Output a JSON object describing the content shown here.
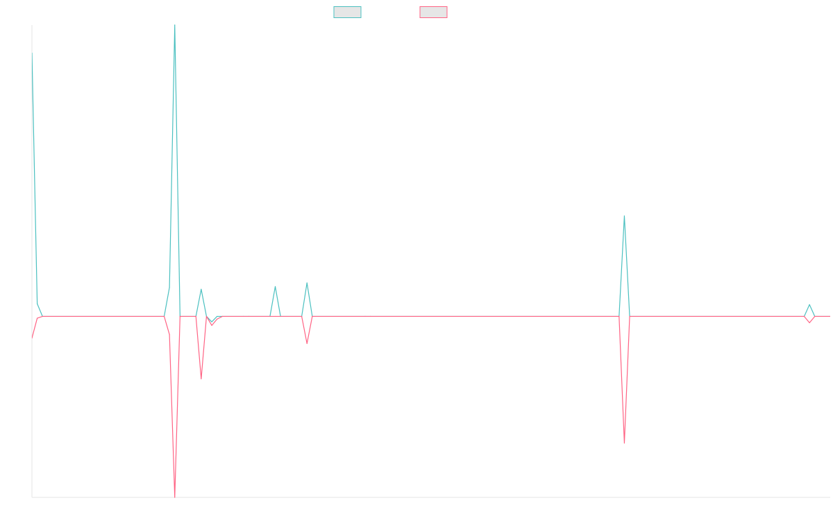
{
  "colors": {
    "series_a": "#4bc0c0",
    "series_b": "#ff6384",
    "legend_fill": "#e6e6e6",
    "axis": "#e5e5e5"
  },
  "chart_data": {
    "type": "line",
    "title": "",
    "xlabel": "",
    "ylabel": "",
    "grid": false,
    "legend": "top-center",
    "ylim": [
      -1.0,
      1.61
    ],
    "x_count": 140,
    "series": [
      {
        "label": "",
        "color": "#4bc0c0",
        "points": [
          [
            0,
            1.455
          ],
          [
            1,
            0.07
          ],
          [
            2,
            0.0
          ],
          [
            25,
            0.0
          ],
          [
            26,
            0.16
          ],
          [
            27,
            1.61
          ],
          [
            28,
            0.0
          ],
          [
            31,
            0.0
          ],
          [
            32,
            0.15
          ],
          [
            33,
            0.0
          ],
          [
            34,
            -0.03
          ],
          [
            35,
            0.0
          ],
          [
            36,
            0.0
          ],
          [
            40,
            0.0
          ],
          [
            41,
            0.0
          ],
          [
            45,
            0.0
          ],
          [
            46,
            0.165
          ],
          [
            47,
            0.0
          ],
          [
            51,
            0.0
          ],
          [
            52,
            0.185
          ],
          [
            53,
            0.0
          ],
          [
            63,
            0.0
          ],
          [
            64,
            0.0
          ],
          [
            111,
            0.0
          ],
          [
            112,
            0.555
          ],
          [
            113,
            0.0
          ],
          [
            146,
            0.0
          ],
          [
            147,
            0.065
          ],
          [
            148,
            0.0
          ],
          [
            151,
            0.0
          ]
        ]
      },
      {
        "label": "",
        "color": "#ff6384",
        "points": [
          [
            0,
            -0.12
          ],
          [
            1,
            -0.01
          ],
          [
            2,
            0.0
          ],
          [
            25,
            0.0
          ],
          [
            26,
            -0.1
          ],
          [
            27,
            -1.0
          ],
          [
            28,
            0.0
          ],
          [
            31,
            0.0
          ],
          [
            32,
            -0.345
          ],
          [
            33,
            0.0
          ],
          [
            34,
            -0.05
          ],
          [
            35,
            -0.015
          ],
          [
            36,
            0.0
          ],
          [
            40,
            0.0
          ],
          [
            41,
            0.0
          ],
          [
            45,
            0.0
          ],
          [
            46,
            0.0
          ],
          [
            51,
            0.0
          ],
          [
            52,
            -0.15
          ],
          [
            53,
            0.0
          ],
          [
            63,
            0.0
          ],
          [
            64,
            0.0
          ],
          [
            111,
            0.0
          ],
          [
            112,
            -0.7
          ],
          [
            113,
            0.0
          ],
          [
            146,
            0.0
          ],
          [
            147,
            -0.035
          ],
          [
            148,
            0.0
          ],
          [
            151,
            0.0
          ]
        ]
      }
    ]
  }
}
